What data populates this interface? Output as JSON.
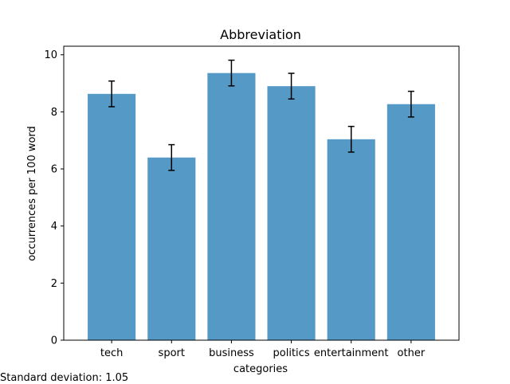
{
  "chart_data": {
    "type": "bar",
    "title": "Abbreviation",
    "xlabel": "categories",
    "ylabel": "occurrences per 100 word",
    "categories": [
      "tech",
      "sport",
      "business",
      "politics",
      "entertainment",
      "other"
    ],
    "values": [
      8.63,
      6.4,
      9.36,
      8.9,
      7.04,
      8.27
    ],
    "errors": [
      0.45,
      0.45,
      0.45,
      0.45,
      0.45,
      0.45
    ],
    "ylim": [
      0,
      10.3
    ],
    "yticks": [
      0,
      2,
      4,
      6,
      8,
      10
    ],
    "bar_color": "#5599c7",
    "grid": false
  },
  "footnote": "Standard deviation: 1.05"
}
